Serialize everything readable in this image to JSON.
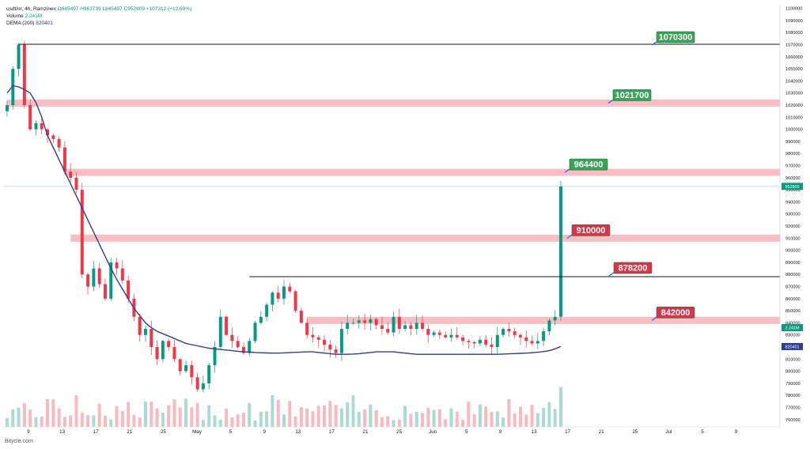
{
  "legend": {
    "symbol": "usdt/irr, 4h, Ramzinex",
    "o": "O845497",
    "h": "H963739",
    "l": "L845497",
    "c": "C952809",
    "chg": "+107312 (+12.69%)",
    "volume_label": "Volume",
    "volume_value": "2.241M",
    "dema_label": "DEMA (200)",
    "dema_value": "820401"
  },
  "footer": "Bitycle.com",
  "colors": {
    "up": "#089981",
    "down": "#f23645",
    "zone": "#f7b3b8",
    "dema": "#2c3e91",
    "label_green": "#3aa35a",
    "label_red": "#d9344a"
  },
  "chart_data": {
    "type": "candlestick",
    "y_axis_ticks": [
      "1100000",
      "1090000",
      "1080000",
      "1070000",
      "1060000",
      "1050000",
      "1040000",
      "1030000",
      "1020000",
      "1010000",
      "1000000",
      "990000",
      "980000",
      "970000",
      "960000",
      "950000",
      "940000",
      "930000",
      "920000",
      "910000",
      "900000",
      "890000",
      "880000",
      "870000",
      "860000",
      "850000",
      "840000",
      "830000",
      "820000",
      "810000",
      "800000",
      "790000",
      "780000",
      "770000",
      "760000"
    ],
    "ylim": [
      754000,
      1103000
    ],
    "x_axis_ticks": [
      "9",
      "13",
      "17",
      "21",
      "25",
      "May",
      "5",
      "9",
      "13",
      "17",
      "21",
      "25",
      "Jun",
      "5",
      "9",
      "13",
      "17",
      "21",
      "25",
      "Jul",
      "5",
      "9"
    ],
    "price_boxes": [
      {
        "label": "952809",
        "value": 952809,
        "color": "#089981"
      },
      {
        "label": "2.241M",
        "value": 836000,
        "color": "#089981"
      },
      {
        "label": "820401",
        "value": 820401,
        "color": "#2c3e91"
      }
    ],
    "levels": [
      {
        "value": 1070300,
        "label": "1070300",
        "kind": "line",
        "x_from_index": 2,
        "label_color": "green"
      },
      {
        "value": 1021700,
        "label": "1021700",
        "kind": "zone",
        "x_from_index": 0,
        "label_color": "green"
      },
      {
        "value": 964400,
        "label": "964400",
        "kind": "zone",
        "x_from_index": 10,
        "label_color": "green"
      },
      {
        "value": 910000,
        "label": "910000",
        "kind": "zone",
        "x_from_index": 11,
        "label_color": "red"
      },
      {
        "value": 878200,
        "label": "878200",
        "kind": "line",
        "x_from_index": 42,
        "label_color": "red"
      },
      {
        "value": 842000,
        "label": "842000",
        "kind": "zone",
        "x_from_index": 52,
        "label_color": "red"
      }
    ],
    "closes": [
      1020000,
      1050000,
      1070000,
      1020000,
      1000000,
      1005000,
      1000000,
      995000,
      992000,
      985000,
      965000,
      960000,
      950000,
      880000,
      870000,
      885000,
      872000,
      860000,
      890000,
      885000,
      875000,
      860000,
      845000,
      830000,
      835000,
      820000,
      810000,
      825000,
      820000,
      810000,
      800000,
      805000,
      795000,
      785000,
      790000,
      805000,
      820000,
      845000,
      830000,
      825000,
      820000,
      815000,
      825000,
      840000,
      845000,
      855000,
      865000,
      860000,
      870000,
      866000,
      850000,
      840000,
      830000,
      828000,
      826000,
      822000,
      818000,
      815000,
      835000,
      840000,
      840000,
      842000,
      840000,
      843000,
      838000,
      835000,
      832000,
      845000,
      835000,
      838000,
      835000,
      840000,
      835000,
      830000,
      832000,
      830000,
      828000,
      830000,
      828000,
      825000,
      824000,
      823000,
      826000,
      822000,
      820000,
      830000,
      835000,
      833000,
      830000,
      828000,
      825000,
      823000,
      825000,
      833000,
      842000,
      845000,
      952809
    ],
    "dema": [
      1030000,
      1036000,
      1035000,
      1033000,
      1030000,
      1022000,
      1010000,
      995000,
      985000,
      975000,
      965000,
      955000,
      945000,
      935000,
      925000,
      915000,
      905000,
      895000,
      885000,
      876000,
      868000,
      860000,
      852000,
      846000,
      840000,
      836000,
      833000,
      831000,
      829000,
      827000,
      825000,
      823000,
      822000,
      821000,
      820000,
      819000,
      818500,
      818000,
      817500,
      817000,
      816500,
      816000,
      815800,
      815500,
      815300,
      815100,
      815000,
      815000,
      815200,
      815400,
      815600,
      815800,
      816000,
      816000,
      815500,
      815000,
      814500,
      814000,
      814000,
      814000,
      814200,
      814500,
      815000,
      815500,
      816000,
      816000,
      816000,
      816000,
      815500,
      815000,
      814500,
      814000,
      814000,
      814000,
      814000,
      814000,
      814000,
      814000,
      814000,
      814000,
      814000,
      814000,
      814000,
      814000,
      814000,
      814000,
      814200,
      814400,
      814600,
      814800,
      815000,
      815300,
      815700,
      816200,
      817000,
      818500,
      820401
    ]
  }
}
